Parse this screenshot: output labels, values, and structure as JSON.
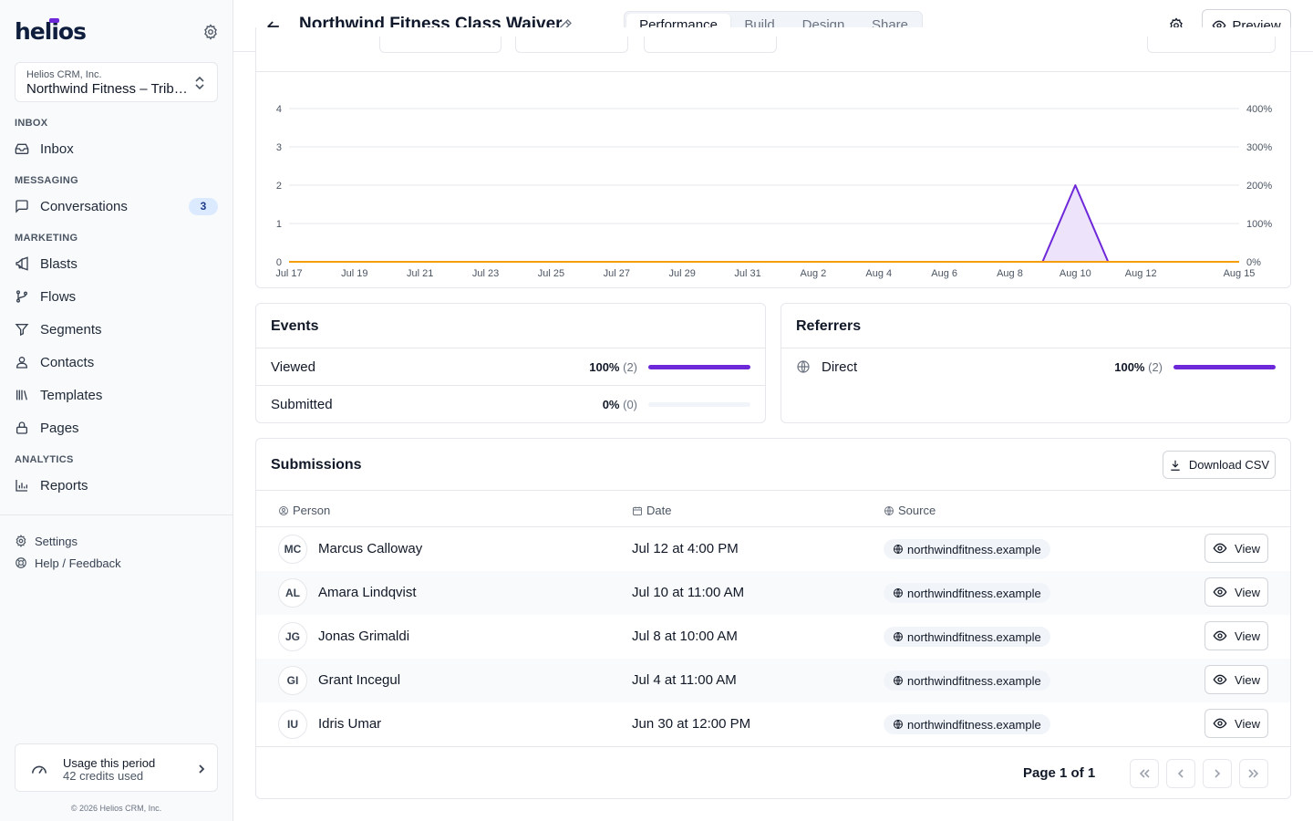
{
  "sidebar": {
    "logo": "helios",
    "org": {
      "company": "Helios CRM, Inc.",
      "name": "Northwind Fitness – Tribeca"
    },
    "sections": {
      "inbox": "INBOX",
      "messaging": "MESSAGING",
      "marketing": "MARKETING",
      "analytics": "ANALYTICS"
    },
    "items": {
      "inbox": "Inbox",
      "conversations": "Conversations",
      "conversations_badge": "3",
      "blasts": "Blasts",
      "flows": "Flows",
      "segments": "Segments",
      "contacts": "Contacts",
      "templates": "Templates",
      "pages": "Pages",
      "reports": "Reports"
    },
    "footer_links": {
      "settings": "Settings",
      "help": "Help / Feedback"
    },
    "usage": {
      "title": "Usage this period",
      "credits": "42 credits used"
    },
    "copyright": "© 2026 Helios CRM, Inc."
  },
  "header": {
    "title": "Northwind Fitness Class Waiver",
    "tabs": [
      "Performance",
      "Build",
      "Design",
      "Share"
    ],
    "active_tab": "Performance",
    "preview_label": "Preview"
  },
  "chart_data": {
    "type": "area",
    "x": [
      "Jul 17",
      "Jul 18",
      "Jul 19",
      "Jul 20",
      "Jul 21",
      "Jul 22",
      "Jul 23",
      "Jul 24",
      "Jul 25",
      "Jul 26",
      "Jul 27",
      "Jul 28",
      "Jul 29",
      "Jul 30",
      "Jul 31",
      "Aug 1",
      "Aug 2",
      "Aug 3",
      "Aug 4",
      "Aug 5",
      "Aug 6",
      "Aug 7",
      "Aug 8",
      "Aug 9",
      "Aug 10",
      "Aug 11",
      "Aug 12",
      "Aug 13",
      "Aug 14",
      "Aug 15"
    ],
    "x_tick_labels": [
      "Jul 17",
      "Jul 19",
      "Jul 21",
      "Jul 23",
      "Jul 25",
      "Jul 27",
      "Jul 29",
      "Jul 31",
      "Aug 2",
      "Aug 4",
      "Aug 6",
      "Aug 8",
      "Aug 10",
      "Aug 12",
      "Aug 15"
    ],
    "series": [
      {
        "values": [
          0,
          0,
          0,
          0,
          0,
          0,
          0,
          0,
          0,
          0,
          0,
          0,
          0,
          0,
          0,
          0,
          0,
          0,
          0,
          0,
          0,
          0,
          0,
          0,
          2,
          0,
          0,
          0,
          0,
          0
        ],
        "color": "#6d28d9",
        "fill": "#ede4fb"
      },
      {
        "values": [
          0,
          0,
          0,
          0,
          0,
          0,
          0,
          0,
          0,
          0,
          0,
          0,
          0,
          0,
          0,
          0,
          0,
          0,
          0,
          0,
          0,
          0,
          0,
          0,
          0,
          0,
          0,
          0,
          0,
          0
        ],
        "color": "#f59e0b"
      }
    ],
    "ylim": [
      0,
      4
    ],
    "y_ticks": [
      "0",
      "1",
      "2",
      "3",
      "4"
    ],
    "y2_ticks": [
      "0%",
      "100%",
      "200%",
      "300%",
      "400%"
    ],
    "grid": true
  },
  "events": {
    "title": "Events",
    "rows": [
      {
        "label": "Viewed",
        "percent": "100%",
        "count": "(2)",
        "fraction": 1.0
      },
      {
        "label": "Submitted",
        "percent": "0%",
        "count": "(0)",
        "fraction": 0.0
      }
    ]
  },
  "referrers": {
    "title": "Referrers",
    "rows": [
      {
        "label": "Direct",
        "percent": "100%",
        "count": "(2)",
        "fraction": 1.0
      }
    ]
  },
  "submissions": {
    "title": "Submissions",
    "download_label": "Download CSV",
    "columns": {
      "person": "Person",
      "date": "Date",
      "source": "Source"
    },
    "rows": [
      {
        "initials": "MC",
        "name": "Marcus Calloway",
        "date": "Jul 12 at 4:00 PM",
        "source": "northwindfitness.example",
        "action": "View"
      },
      {
        "initials": "AL",
        "name": "Amara Lindqvist",
        "date": "Jul 10 at 11:00 AM",
        "source": "northwindfitness.example",
        "action": "View"
      },
      {
        "initials": "JG",
        "name": "Jonas Grimaldi",
        "date": "Jul 8 at 10:00 AM",
        "source": "northwindfitness.example",
        "action": "View"
      },
      {
        "initials": "GI",
        "name": "Grant Incegul",
        "date": "Jul 4 at 11:00 AM",
        "source": "northwindfitness.example",
        "action": "View"
      },
      {
        "initials": "IU",
        "name": "Idris Umar",
        "date": "Jun 30 at 12:00 PM",
        "source": "northwindfitness.example",
        "action": "View"
      }
    ],
    "pagination": "Page 1 of 1"
  }
}
